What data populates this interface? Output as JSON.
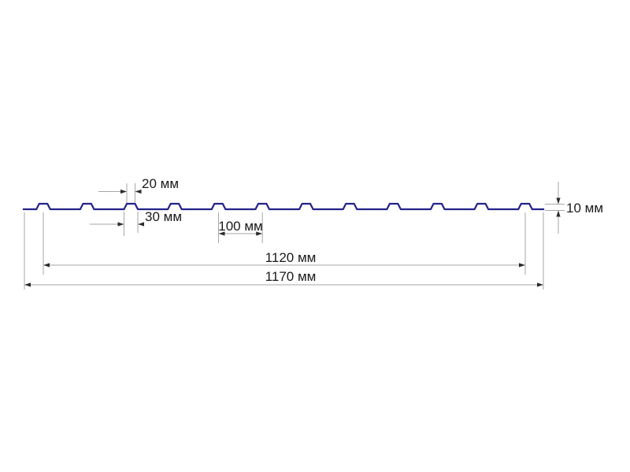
{
  "page": {
    "background_color": "#ffffff"
  },
  "diagram": {
    "kind": "profiled-metal-sheet-cross-section",
    "units": "мм",
    "profile_color": "#23238a",
    "dimension_line_color": "#a6a6a6",
    "arrow_color": "#2b2b2b",
    "text_color": "#1a1a1a",
    "rib_count": 12,
    "labels": {
      "rib_top_width": "20 мм",
      "rib_bottom_width": "30 мм",
      "rib_pitch": "100 мм",
      "working_width": "1120 мм",
      "overall_width": "1170 мм",
      "profile_height": "10 мм"
    },
    "values_mm": {
      "rib_top_width": 20,
      "rib_bottom_width": 30,
      "rib_pitch": 100,
      "working_width": 1120,
      "overall_width": 1170,
      "profile_height": 10
    }
  }
}
